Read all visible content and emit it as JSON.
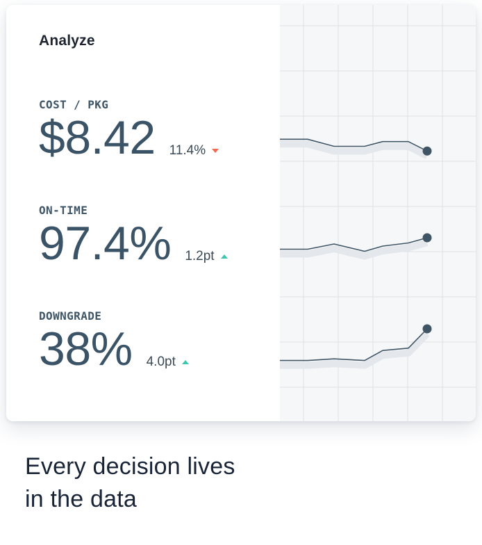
{
  "card": {
    "title": "Analyze",
    "metrics": [
      {
        "label": "COST / PKG",
        "value": "$8.42",
        "delta": "11.4%",
        "direction": "down",
        "sparkline": [
          0.55,
          0.55,
          0.25,
          0.25,
          0.45,
          0.45,
          0.05
        ]
      },
      {
        "label": "ON-TIME",
        "value": "97.4%",
        "delta": "1.2pt",
        "direction": "up",
        "sparkline": [
          0.15,
          0.15,
          0.4,
          0.05,
          0.3,
          0.45,
          0.7
        ]
      },
      {
        "label": "DOWNGRADE",
        "value": "38%",
        "delta": "4.0pt",
        "direction": "up",
        "sparkline": [
          0.05,
          0.05,
          0.1,
          0.05,
          0.35,
          0.42,
          1.0
        ]
      }
    ]
  },
  "tagline": {
    "line1": "Every decision lives",
    "line2": "in the data"
  },
  "colors": {
    "value": "#3b5366",
    "down": "#f26a4f",
    "up": "#3cc6b0",
    "sparkline": "#3f5566",
    "grid": "#dde1e5"
  }
}
